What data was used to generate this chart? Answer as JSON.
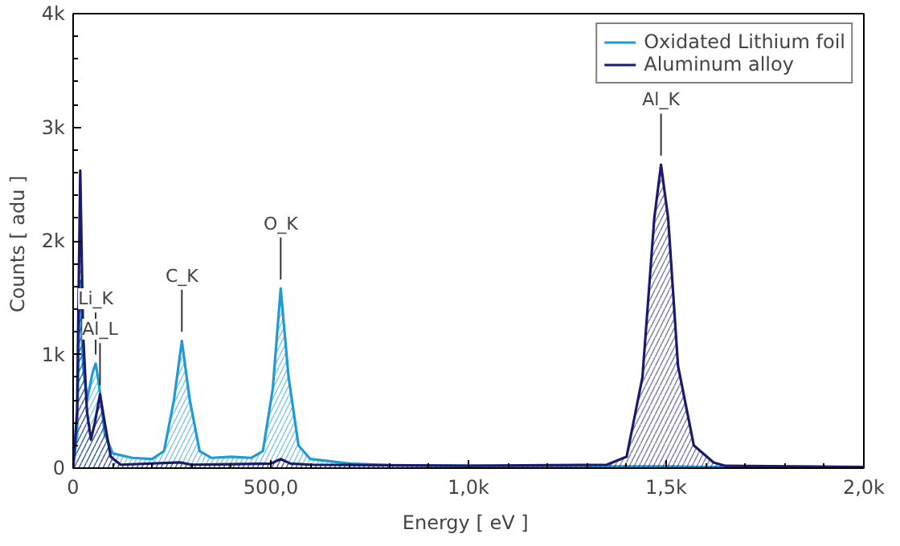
{
  "chart_data": {
    "type": "area",
    "xlabel": "Energy  [ eV ]",
    "ylabel": "Counts  [ adu ]",
    "xlim": [
      0,
      2000
    ],
    "ylim": [
      0,
      4000
    ],
    "xticks": [
      0,
      {
        "value": 500,
        "label": "500,0"
      },
      {
        "value": 1000,
        "label": "1,0k"
      },
      {
        "value": 1500,
        "label": "1,5k"
      },
      {
        "value": 2000,
        "label": "2,0k"
      }
    ],
    "yticks": [
      0,
      {
        "value": 1000,
        "label": "1k"
      },
      {
        "value": 2000,
        "label": "2k"
      },
      {
        "value": 3000,
        "label": "3k"
      },
      {
        "value": 4000,
        "label": "4k"
      }
    ],
    "grid": false,
    "legend": "top right",
    "marker": "none",
    "line_style": "solid",
    "series": [
      {
        "name": "Oxidated Lithium foil",
        "color": "#1e9ad6",
        "x": [
          0,
          10,
          17,
          25,
          35,
          50,
          57,
          65,
          80,
          100,
          150,
          200,
          230,
          255,
          275,
          295,
          320,
          350,
          400,
          450,
          480,
          505,
          525,
          545,
          570,
          600,
          700,
          800,
          1000,
          1400,
          1500,
          1600,
          2000
        ],
        "values": [
          0,
          300,
          1650,
          900,
          600,
          850,
          920,
          750,
          300,
          130,
          90,
          80,
          150,
          600,
          1120,
          600,
          150,
          90,
          100,
          90,
          150,
          700,
          1580,
          800,
          200,
          80,
          40,
          25,
          20,
          15,
          15,
          10,
          5
        ]
      },
      {
        "name": "Aluminum alloy",
        "color": "#1a1a6e",
        "x": [
          0,
          10,
          18,
          25,
          35,
          45,
          55,
          68,
          80,
          95,
          120,
          270,
          300,
          500,
          525,
          550,
          600,
          1000,
          1350,
          1400,
          1440,
          1470,
          1487,
          1505,
          1530,
          1570,
          1620,
          1650,
          2000
        ],
        "values": [
          0,
          500,
          2620,
          1200,
          500,
          250,
          400,
          650,
          400,
          100,
          30,
          50,
          30,
          40,
          80,
          40,
          30,
          20,
          30,
          100,
          800,
          2200,
          2670,
          2200,
          900,
          200,
          50,
          20,
          10
        ]
      }
    ],
    "annotations": [
      {
        "text": "Li_K",
        "x": 57,
        "y": 920
      },
      {
        "text": "Al_L",
        "x": 68,
        "y": 650
      },
      {
        "text": "C_K",
        "x": 275,
        "y": 1120
      },
      {
        "text": "O_K",
        "x": 525,
        "y": 1580
      },
      {
        "text": "Al_K",
        "x": 1487,
        "y": 2670
      }
    ]
  }
}
